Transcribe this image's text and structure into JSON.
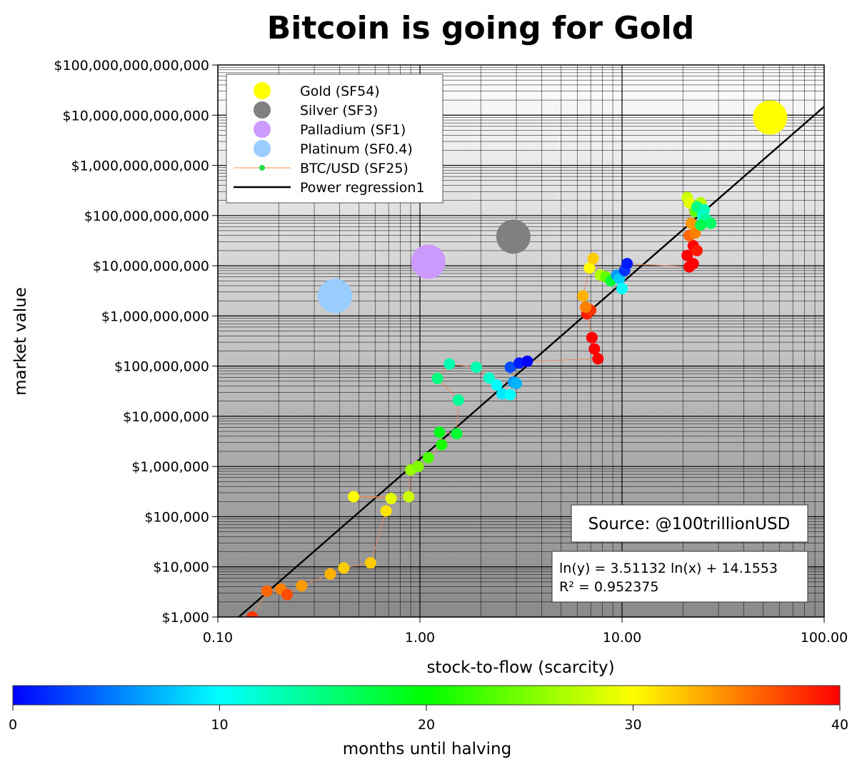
{
  "chart_data": {
    "type": "scatter",
    "title": "Bitcoin is going for Gold",
    "xlabel": "stock-to-flow (scarcity)",
    "ylabel": "market value",
    "x_scale": "log",
    "y_scale": "log",
    "xlim": [
      0.1,
      100
    ],
    "ylim": [
      1000,
      100000000000000
    ],
    "grid": true,
    "x_ticks": [
      "0.10",
      "1.00",
      "10.00",
      "100.00"
    ],
    "y_ticks": [
      "$1,000",
      "$10,000",
      "$100,000",
      "$1,000,000",
      "$10,000,000",
      "$100,000,000",
      "$1,000,000,000",
      "$10,000,000,000",
      "$100,000,000,000",
      "$1,000,000,000,000",
      "$10,000,000,000,000",
      "$100,000,000,000,000"
    ],
    "legend_position": "top-left",
    "legend": [
      {
        "label": "Gold (SF54)",
        "color": "#ffff00",
        "kind": "dot"
      },
      {
        "label": "Silver (SF3)",
        "color": "#808080",
        "kind": "dot"
      },
      {
        "label": "Palladium (SF1)",
        "color": "#cc99ff",
        "kind": "dot"
      },
      {
        "label": "Platinum (SF0.4)",
        "color": "#99ccff",
        "kind": "dot"
      },
      {
        "label": "BTC/USD (SF25)",
        "color": "#ff8844",
        "kind": "line-dot"
      },
      {
        "label": "Power regression1",
        "color": "#000000",
        "kind": "line"
      }
    ],
    "metals": [
      {
        "name": "Gold",
        "x": 54,
        "y": 9000000000000,
        "color": "#ffff00"
      },
      {
        "name": "Silver",
        "x": 2.9,
        "y": 38000000000,
        "color": "#808080"
      },
      {
        "name": "Palladium",
        "x": 1.1,
        "y": 12000000000,
        "color": "#cc99ff"
      },
      {
        "name": "Platinum",
        "x": 0.38,
        "y": 2500000000,
        "color": "#99ccff"
      }
    ],
    "btc_series": {
      "name": "BTC/USD (SF25)",
      "line_color": "#e08a5a",
      "points": [
        {
          "x": 0.148,
          "y": 1000,
          "m": 38
        },
        {
          "x": 0.175,
          "y": 3300,
          "m": 36
        },
        {
          "x": 0.205,
          "y": 3600,
          "m": 35
        },
        {
          "x": 0.22,
          "y": 2800,
          "m": 37
        },
        {
          "x": 0.26,
          "y": 4200,
          "m": 34
        },
        {
          "x": 0.36,
          "y": 7200,
          "m": 33
        },
        {
          "x": 0.42,
          "y": 9500,
          "m": 32
        },
        {
          "x": 0.57,
          "y": 12000,
          "m": 32
        },
        {
          "x": 0.68,
          "y": 130000,
          "m": 31
        },
        {
          "x": 0.72,
          "y": 230000,
          "m": 29
        },
        {
          "x": 0.47,
          "y": 250000,
          "m": 30
        },
        {
          "x": 0.88,
          "y": 250000,
          "m": 28
        },
        {
          "x": 0.9,
          "y": 850000,
          "m": 26
        },
        {
          "x": 0.98,
          "y": 1000000,
          "m": 25
        },
        {
          "x": 1.1,
          "y": 1500000,
          "m": 23
        },
        {
          "x": 1.28,
          "y": 2700000,
          "m": 21
        },
        {
          "x": 1.25,
          "y": 4800000,
          "m": 19
        },
        {
          "x": 1.52,
          "y": 4500000,
          "m": 18
        },
        {
          "x": 1.55,
          "y": 21000000,
          "m": 14
        },
        {
          "x": 1.22,
          "y": 57000000,
          "m": 15
        },
        {
          "x": 1.4,
          "y": 110000000,
          "m": 13
        },
        {
          "x": 1.9,
          "y": 95000000,
          "m": 13
        },
        {
          "x": 2.2,
          "y": 58000000,
          "m": 12
        },
        {
          "x": 2.4,
          "y": 42000000,
          "m": 10
        },
        {
          "x": 2.55,
          "y": 28000000,
          "m": 9
        },
        {
          "x": 2.8,
          "y": 27000000,
          "m": 10
        },
        {
          "x": 2.9,
          "y": 48000000,
          "m": 6
        },
        {
          "x": 3.0,
          "y": 45000000,
          "m": 7
        },
        {
          "x": 2.8,
          "y": 95000000,
          "m": 3
        },
        {
          "x": 3.1,
          "y": 115000000,
          "m": 1
        },
        {
          "x": 3.4,
          "y": 125000000,
          "m": 0
        },
        {
          "x": 7.6,
          "y": 140000000,
          "m": 40
        },
        {
          "x": 7.3,
          "y": 220000000,
          "m": 40
        },
        {
          "x": 7.1,
          "y": 370000000,
          "m": 40
        },
        {
          "x": 6.7,
          "y": 1100000000,
          "m": 39
        },
        {
          "x": 7.0,
          "y": 1300000000,
          "m": 38
        },
        {
          "x": 6.6,
          "y": 1500000000,
          "m": 35
        },
        {
          "x": 6.4,
          "y": 2500000000,
          "m": 33
        },
        {
          "x": 6.9,
          "y": 9000000000,
          "m": 30
        },
        {
          "x": 7.2,
          "y": 14000000000,
          "m": 32
        },
        {
          "x": 7.8,
          "y": 6500000000,
          "m": 27
        },
        {
          "x": 8.3,
          "y": 6000000000,
          "m": 24
        },
        {
          "x": 8.8,
          "y": 5000000000,
          "m": 18
        },
        {
          "x": 9.4,
          "y": 6500000000,
          "m": 6
        },
        {
          "x": 9.7,
          "y": 5500000000,
          "m": 8
        },
        {
          "x": 10.0,
          "y": 3500000000,
          "m": 10
        },
        {
          "x": 10.3,
          "y": 8000000000,
          "m": 2
        },
        {
          "x": 10.6,
          "y": 11000000000,
          "m": 1
        },
        {
          "x": 21.5,
          "y": 9500000000,
          "m": 40
        },
        {
          "x": 22.5,
          "y": 11000000000,
          "m": 40
        },
        {
          "x": 21.0,
          "y": 16000000000,
          "m": 40
        },
        {
          "x": 22.5,
          "y": 25000000000,
          "m": 40
        },
        {
          "x": 23.5,
          "y": 20000000000,
          "m": 39
        },
        {
          "x": 21.5,
          "y": 40000000000,
          "m": 36
        },
        {
          "x": 23.0,
          "y": 45000000000,
          "m": 35
        },
        {
          "x": 22.0,
          "y": 70000000000,
          "m": 34
        },
        {
          "x": 21.0,
          "y": 230000000000,
          "m": 28
        },
        {
          "x": 21.5,
          "y": 180000000000,
          "m": 29
        },
        {
          "x": 23.0,
          "y": 120000000000,
          "m": 24
        },
        {
          "x": 24.5,
          "y": 180000000000,
          "m": 27
        },
        {
          "x": 23.5,
          "y": 150000000000,
          "m": 15
        },
        {
          "x": 25.5,
          "y": 130000000000,
          "m": 13
        },
        {
          "x": 25.0,
          "y": 100000000000,
          "m": 12
        },
        {
          "x": 26.0,
          "y": 85000000000,
          "m": 14
        },
        {
          "x": 27.5,
          "y": 70000000000,
          "m": 16
        },
        {
          "x": 24.5,
          "y": 65000000000,
          "m": 17
        }
      ]
    },
    "regression": {
      "name": "Power regression1",
      "slope": 3.51132,
      "intercept": 14.1553,
      "equation_text": "ln(y) = 3.51132 ln(x) + 14.1553",
      "r2_text": "R² = 0.952375"
    },
    "source_text": "Source: @100trillionUSD",
    "colorbar": {
      "label": "months until halving",
      "min": 0,
      "max": 40,
      "ticks": [
        "0",
        "10",
        "20",
        "30",
        "40"
      ],
      "colors": [
        "#0000ff",
        "#00ffff",
        "#00ff00",
        "#ffff00",
        "#ff0000"
      ]
    }
  }
}
